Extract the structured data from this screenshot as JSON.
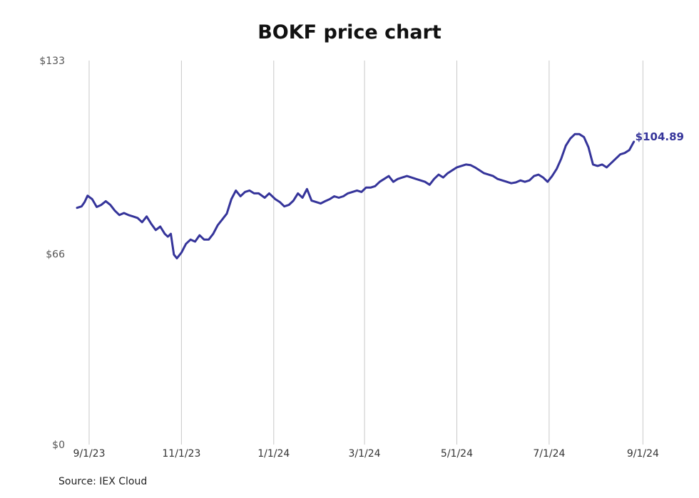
{
  "chart_data": {
    "type": "line",
    "title": "BOKF price chart",
    "source": "Source: IEX Cloud",
    "xlabel": "",
    "ylabel": "",
    "ylim": [
      0,
      133
    ],
    "xlim": [
      "2023-08-24",
      "2024-09-06"
    ],
    "y_ticks": [
      {
        "value": 0,
        "label": "$0"
      },
      {
        "value": 66,
        "label": "$66"
      },
      {
        "value": 133,
        "label": "$133"
      }
    ],
    "x_ticks": [
      {
        "value": "2023-09-01",
        "label": "9/1/23"
      },
      {
        "value": "2023-11-01",
        "label": "11/1/23"
      },
      {
        "value": "2024-01-01",
        "label": "1/1/24"
      },
      {
        "value": "2024-03-01",
        "label": "3/1/24"
      },
      {
        "value": "2024-05-01",
        "label": "5/1/24"
      },
      {
        "value": "2024-07-01",
        "label": "7/1/24"
      },
      {
        "value": "2024-09-01",
        "label": "9/1/24"
      }
    ],
    "grid": {
      "vertical": true,
      "horizontal": false
    },
    "line_color": "#35349a",
    "grid_color": "#c8c8c8",
    "last_value_label": "$104.89",
    "series": [
      {
        "x": [
          "2023-08-24",
          "2023-08-27",
          "2023-08-29",
          "2023-08-31",
          "2023-09-03",
          "2023-09-06",
          "2023-09-09",
          "2023-09-12",
          "2023-09-15",
          "2023-09-18",
          "2023-09-21",
          "2023-09-24",
          "2023-09-27",
          "2023-09-30",
          "2023-10-03",
          "2023-10-06",
          "2023-10-09",
          "2023-10-12",
          "2023-10-15",
          "2023-10-18",
          "2023-10-21",
          "2023-10-23",
          "2023-10-25",
          "2023-10-27",
          "2023-10-29",
          "2023-11-01",
          "2023-11-04",
          "2023-11-07",
          "2023-11-10",
          "2023-11-13",
          "2023-11-16",
          "2023-11-19",
          "2023-11-22",
          "2023-11-25",
          "2023-11-28",
          "2023-12-01",
          "2023-12-04",
          "2023-12-07",
          "2023-12-10",
          "2023-12-13",
          "2023-12-16",
          "2023-12-19",
          "2023-12-22",
          "2023-12-26",
          "2023-12-29",
          "2024-01-02",
          "2024-01-05",
          "2024-01-08",
          "2024-01-11",
          "2024-01-14",
          "2024-01-17",
          "2024-01-20",
          "2024-01-23",
          "2024-01-26",
          "2024-01-29",
          "2024-02-01",
          "2024-02-04",
          "2024-02-07",
          "2024-02-10",
          "2024-02-13",
          "2024-02-16",
          "2024-02-19",
          "2024-02-22",
          "2024-02-25",
          "2024-02-28",
          "2024-03-02",
          "2024-03-05",
          "2024-03-08",
          "2024-03-11",
          "2024-03-14",
          "2024-03-17",
          "2024-03-20",
          "2024-03-23",
          "2024-03-26",
          "2024-03-29",
          "2024-04-01",
          "2024-04-04",
          "2024-04-07",
          "2024-04-10",
          "2024-04-13",
          "2024-04-16",
          "2024-04-19",
          "2024-04-22",
          "2024-04-25",
          "2024-04-28",
          "2024-05-01",
          "2024-05-04",
          "2024-05-07",
          "2024-05-10",
          "2024-05-13",
          "2024-05-16",
          "2024-05-19",
          "2024-05-22",
          "2024-05-25",
          "2024-05-28",
          "2024-05-31",
          "2024-06-03",
          "2024-06-06",
          "2024-06-09",
          "2024-06-12",
          "2024-06-15",
          "2024-06-18",
          "2024-06-21",
          "2024-06-24",
          "2024-06-27",
          "2024-06-30",
          "2024-07-03",
          "2024-07-06",
          "2024-07-09",
          "2024-07-12",
          "2024-07-15",
          "2024-07-18",
          "2024-07-21",
          "2024-07-24",
          "2024-07-27",
          "2024-07-30",
          "2024-08-02",
          "2024-08-05",
          "2024-08-08",
          "2024-08-11",
          "2024-08-14",
          "2024-08-17",
          "2024-08-20",
          "2024-08-23",
          "2024-08-26"
        ],
        "y": [
          82.0,
          82.5,
          84.0,
          86.2,
          85.0,
          82.3,
          83.0,
          84.3,
          83.0,
          81.0,
          79.5,
          80.2,
          79.5,
          79.0,
          78.5,
          77.0,
          79.0,
          76.5,
          74.3,
          75.5,
          73.0,
          72.0,
          73.0,
          65.8,
          64.5,
          66.5,
          69.5,
          71.0,
          70.3,
          72.5,
          71.0,
          71.0,
          73.0,
          76.0,
          78.0,
          80.0,
          85.0,
          88.0,
          86.0,
          87.5,
          88.0,
          87.0,
          87.0,
          85.5,
          87.0,
          85.0,
          84.0,
          82.5,
          83.0,
          84.5,
          87.0,
          85.5,
          88.5,
          84.5,
          84.0,
          83.5,
          84.3,
          85.0,
          86.0,
          85.5,
          86.0,
          87.0,
          87.5,
          88.0,
          87.5,
          89.0,
          89.0,
          89.5,
          91.0,
          92.0,
          93.0,
          91.0,
          92.0,
          92.5,
          93.0,
          92.5,
          92.0,
          91.5,
          91.0,
          90.0,
          92.0,
          93.5,
          92.5,
          94.0,
          95.0,
          96.0,
          96.5,
          97.0,
          96.8,
          96.0,
          95.0,
          94.0,
          93.5,
          93.0,
          92.0,
          91.5,
          91.0,
          90.5,
          90.8,
          91.5,
          91.0,
          91.5,
          93.0,
          93.5,
          92.5,
          91.0,
          93.0,
          95.5,
          99.0,
          103.5,
          106.0,
          107.5,
          107.5,
          106.5,
          103.0,
          97.0,
          96.5,
          97.0,
          96.0,
          97.5,
          99.0,
          100.5,
          101.0,
          102.0,
          104.89
        ]
      }
    ]
  }
}
